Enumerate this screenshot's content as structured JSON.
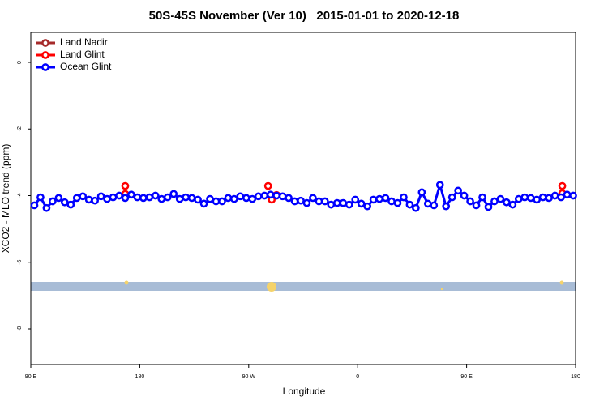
{
  "chart_data": {
    "type": "line",
    "title": "50S-45S November (Ver 10)   2015-01-01 to 2020-12-18",
    "x_label": "Longitude",
    "y_label": "XCO2 - MLO trend (ppm)",
    "xlim": [
      90,
      540
    ],
    "xticks": [
      {
        "value": 90,
        "label": "90 E"
      },
      {
        "value": 180,
        "label": "180"
      },
      {
        "value": 270,
        "label": "90 W"
      },
      {
        "value": 360,
        "label": "0"
      },
      {
        "value": 450,
        "label": "90 E"
      },
      {
        "value": 540,
        "label": "180"
      }
    ],
    "ylim": [
      -9.07,
      0.9
    ],
    "yticks": [
      0,
      -2,
      -4,
      -6,
      -8
    ],
    "legend": "top-left",
    "series": [
      {
        "name": "Land Nadir",
        "color": "#a52a2a",
        "x": [],
        "values": []
      },
      {
        "name": "Land Glint",
        "color": "#ff0000",
        "x": [
          168,
          168,
          286,
          289,
          293,
          529,
          529
        ],
        "values": [
          -3.71,
          -3.95,
          -3.71,
          -4.12,
          -3.98,
          -3.71,
          -3.93
        ]
      },
      {
        "name": "Ocean Glint",
        "color": "#0000ff",
        "x": [
          93,
          98,
          103,
          108,
          113,
          118,
          123,
          128,
          133,
          138,
          143,
          148,
          153,
          158,
          163,
          168,
          173,
          178,
          183,
          188,
          193,
          198,
          203,
          208,
          213,
          218,
          223,
          228,
          233,
          238,
          243,
          248,
          253,
          258,
          263,
          268,
          273,
          278,
          283,
          288,
          293,
          298,
          303,
          308,
          313,
          318,
          323,
          328,
          333,
          338,
          343,
          348,
          353,
          358,
          363,
          368,
          373,
          378,
          383,
          388,
          393,
          398,
          403,
          408,
          413,
          418,
          423,
          428,
          433,
          438,
          443,
          448,
          453,
          458,
          463,
          468,
          473,
          478,
          483,
          488,
          493,
          498,
          503,
          508,
          513,
          518,
          523,
          528,
          533,
          538
        ],
        "values": [
          -4.29,
          -4.05,
          -4.37,
          -4.17,
          -4.07,
          -4.2,
          -4.27,
          -4.07,
          -4.02,
          -4.12,
          -4.15,
          -4.02,
          -4.1,
          -4.05,
          -4.0,
          -4.07,
          -3.97,
          -4.05,
          -4.07,
          -4.05,
          -4.0,
          -4.1,
          -4.05,
          -3.95,
          -4.1,
          -4.05,
          -4.07,
          -4.12,
          -4.24,
          -4.1,
          -4.17,
          -4.17,
          -4.07,
          -4.1,
          -4.02,
          -4.07,
          -4.1,
          -4.02,
          -4.0,
          -3.97,
          -4.0,
          -4.02,
          -4.07,
          -4.17,
          -4.15,
          -4.22,
          -4.07,
          -4.17,
          -4.17,
          -4.27,
          -4.22,
          -4.22,
          -4.27,
          -4.12,
          -4.24,
          -4.32,
          -4.12,
          -4.1,
          -4.07,
          -4.17,
          -4.22,
          -4.05,
          -4.27,
          -4.37,
          -3.9,
          -4.24,
          -4.29,
          -3.68,
          -4.32,
          -4.05,
          -3.85,
          -4.0,
          -4.17,
          -4.29,
          -4.05,
          -4.34,
          -4.17,
          -4.1,
          -4.2,
          -4.27,
          -4.1,
          -4.05,
          -4.07,
          -4.12,
          -4.05,
          -4.07,
          -4.0,
          -4.05,
          -3.97,
          -4.0
        ]
      }
    ]
  }
}
